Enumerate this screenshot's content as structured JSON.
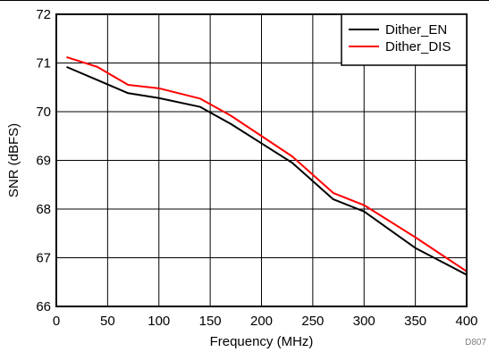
{
  "chart_data": {
    "type": "line",
    "title": "",
    "xlabel": "Frequency (MHz)",
    "ylabel": "SNR (dBFS)",
    "xlim": [
      0,
      400
    ],
    "ylim": [
      66,
      72
    ],
    "x_ticks": [
      0,
      50,
      100,
      150,
      200,
      250,
      300,
      350,
      400
    ],
    "y_ticks": [
      66,
      67,
      68,
      69,
      70,
      71,
      72
    ],
    "grid": true,
    "legend_position": "top-right",
    "series": [
      {
        "name": "Dither_EN",
        "color": "#000000",
        "x": [
          10,
          40,
          70,
          100,
          140,
          170,
          200,
          230,
          270,
          300,
          350,
          400
        ],
        "y": [
          70.92,
          70.65,
          70.38,
          70.28,
          70.1,
          69.75,
          69.35,
          68.95,
          68.2,
          67.95,
          67.2,
          66.65
        ]
      },
      {
        "name": "Dither_DIS",
        "color": "#ff0000",
        "x": [
          10,
          40,
          70,
          100,
          140,
          170,
          200,
          230,
          270,
          300,
          350,
          400
        ],
        "y": [
          71.12,
          70.92,
          70.55,
          70.48,
          70.27,
          69.92,
          69.5,
          69.08,
          68.33,
          68.08,
          67.42,
          66.72
        ]
      }
    ],
    "figure_code": "D807"
  }
}
